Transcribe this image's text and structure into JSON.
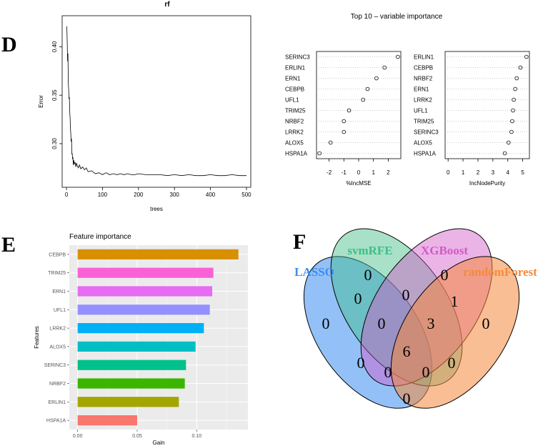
{
  "panel_labels": {
    "d": "D",
    "e": "E",
    "f": "F"
  },
  "chart_data": [
    {
      "id": "rf_error",
      "type": "line",
      "title": "rf",
      "xlabel": "trees",
      "ylabel": "Error",
      "xlim": [
        -12,
        512
      ],
      "ylim": [
        0.255,
        0.432
      ],
      "xticks": [
        0,
        100,
        200,
        300,
        400,
        500
      ],
      "yticks": [
        0.3,
        0.35,
        0.4
      ],
      "x": [
        1,
        2,
        3,
        4,
        5,
        6,
        7,
        8,
        9,
        10,
        11,
        12,
        13,
        14,
        15,
        16,
        17,
        18,
        19,
        20,
        22,
        24,
        26,
        28,
        30,
        33,
        36,
        40,
        45,
        50,
        55,
        60,
        70,
        80,
        90,
        100,
        110,
        120,
        130,
        140,
        150,
        160,
        170,
        180,
        190,
        200,
        220,
        240,
        260,
        280,
        300,
        320,
        340,
        360,
        380,
        400,
        420,
        440,
        460,
        480,
        500
      ],
      "y": [
        0.421,
        0.405,
        0.385,
        0.393,
        0.362,
        0.356,
        0.346,
        0.348,
        0.333,
        0.327,
        0.316,
        0.31,
        0.302,
        0.305,
        0.289,
        0.29,
        0.284,
        0.286,
        0.278,
        0.283,
        0.279,
        0.281,
        0.276,
        0.28,
        0.277,
        0.275,
        0.278,
        0.274,
        0.276,
        0.273,
        0.275,
        0.271,
        0.272,
        0.269,
        0.27,
        0.268,
        0.27,
        0.268,
        0.269,
        0.268,
        0.269,
        0.268,
        0.269,
        0.268,
        0.268,
        0.269,
        0.268,
        0.268,
        0.268,
        0.267,
        0.268,
        0.267,
        0.268,
        0.267,
        0.267,
        0.268,
        0.267,
        0.267,
        0.268,
        0.267,
        0.267
      ]
    },
    {
      "id": "incmse",
      "type": "scatter",
      "title": "Top 10 – variable importance",
      "xlabel": "%IncMSE",
      "xlim": [
        -2.85,
        2.85
      ],
      "xticks": [
        -2,
        -1,
        0,
        1,
        2
      ],
      "categories": [
        "SERINC3",
        "ERLIN1",
        "ERN1",
        "CEBPB",
        "UFL1",
        "TRIM25",
        "NRBF2",
        "LRRK2",
        "ALOX5",
        "HSPA1A"
      ],
      "values": [
        2.65,
        1.75,
        1.2,
        0.6,
        0.3,
        -0.65,
        -1.0,
        -1.0,
        -1.9,
        -2.65
      ]
    },
    {
      "id": "incnodepurity",
      "type": "scatter",
      "title": "",
      "xlabel": "IncNodePurity",
      "xlim": [
        -0.2,
        5.45
      ],
      "xticks": [
        0,
        1,
        2,
        3,
        4,
        5
      ],
      "categories": [
        "ERLIN1",
        "CEBPB",
        "NRBF2",
        "ERN1",
        "LRRK2",
        "UFL1",
        "TRIM25",
        "SERINC3",
        "ALOX5",
        "HSPA1A"
      ],
      "values": [
        5.25,
        4.85,
        4.6,
        4.5,
        4.4,
        4.35,
        4.3,
        4.25,
        4.05,
        3.8
      ]
    },
    {
      "id": "xgb_gain",
      "type": "bar",
      "orientation": "horizontal",
      "title": "Feature importance",
      "xlabel": "Gain",
      "ylabel": "Features",
      "xlim": [
        -0.007,
        0.143
      ],
      "xticks": [
        0.0,
        0.05,
        0.1
      ],
      "xtick_labels": [
        "0.00",
        "0.05",
        "0.10"
      ],
      "categories": [
        "CEBPB",
        "TRIM25",
        "ERN1",
        "UFL1",
        "LRRK2",
        "ALOX5",
        "SERINC3",
        "NRBF2",
        "ERLIN1",
        "HSPA1A"
      ],
      "values": [
        0.135,
        0.114,
        0.113,
        0.111,
        0.106,
        0.099,
        0.091,
        0.09,
        0.085,
        0.05
      ],
      "colors": [
        "#d89000",
        "#fb61d7",
        "#e76bf3",
        "#9590ff",
        "#00b0f6",
        "#00bfc4",
        "#00c08b",
        "#39b600",
        "#a3a500",
        "#f8766d"
      ]
    },
    {
      "id": "venn",
      "type": "venn",
      "sets": [
        {
          "name": "LASSO",
          "color": "#3b8ef0"
        },
        {
          "name": "svmRFE",
          "color": "#3ebd84"
        },
        {
          "name": "XGBoost",
          "color": "#d358c8"
        },
        {
          "name": "randomForest",
          "color": "#f5893c"
        }
      ],
      "regions": {
        "lasso_only": "0",
        "svm_only": "0",
        "xgb_only": "0",
        "rf_only": "0",
        "lasso_svm": "0",
        "svm_xgb": "0",
        "xgb_rf": "1",
        "lasso_svm_xgb": "0",
        "svm_xgb_rf": "3",
        "lasso_xgb": "0",
        "all_four": "6",
        "lasso_svm_rf": "0",
        "lasso_xgb_rf": "0",
        "svm_rf": "0",
        "lasso_rf": "0"
      }
    }
  ]
}
